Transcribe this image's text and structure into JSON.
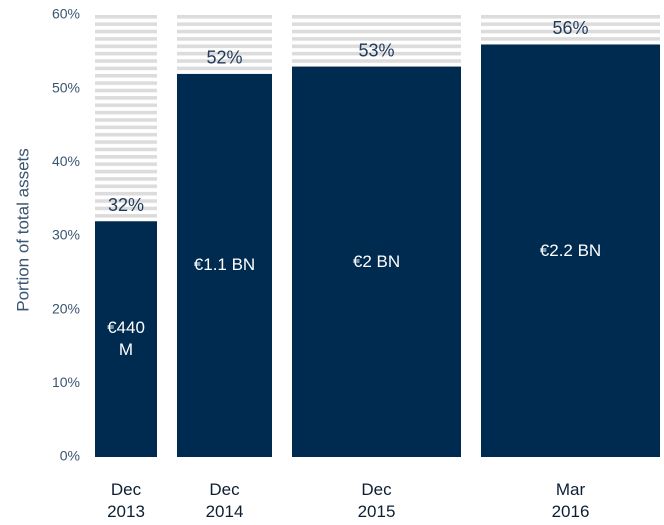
{
  "chart_data": {
    "type": "bar",
    "y_label": "Portion of total assets",
    "categories": [
      "Dec 2013",
      "Dec 2014",
      "Dec 2015",
      "Mar 2016"
    ],
    "values": [
      32,
      52,
      53,
      56
    ],
    "value_labels": [
      "32%",
      "52%",
      "53%",
      "56%"
    ],
    "bar_labels": [
      "€440 M",
      "€1.1 BN",
      "€2 BN",
      "€2.2 BN"
    ],
    "color": "#002b50",
    "ylim": [
      0,
      60
    ],
    "yticks": [
      {
        "value": 0,
        "label": "0%"
      },
      {
        "value": 10,
        "label": "10%"
      },
      {
        "value": 20,
        "label": "20%"
      },
      {
        "value": 30,
        "label": "30%"
      },
      {
        "value": 40,
        "label": "40%"
      },
      {
        "value": 50,
        "label": "50%"
      },
      {
        "value": 60,
        "label": "60%"
      }
    ]
  }
}
